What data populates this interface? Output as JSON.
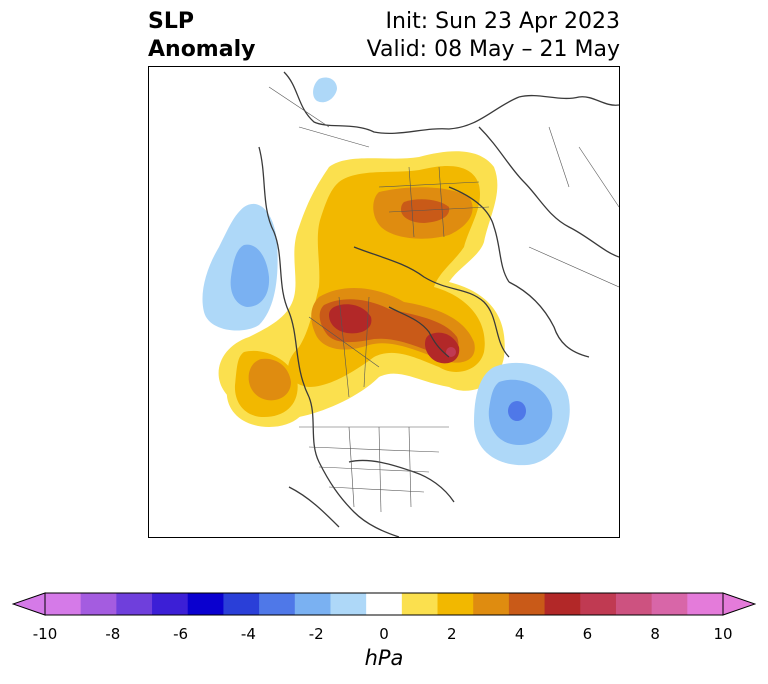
{
  "title": {
    "left_line1": "SLP",
    "left_line2": "Anomaly",
    "right_line1": "Init: Sun 23 Apr 2023",
    "right_line2": "Valid: 08 May – 21 May"
  },
  "colorbar": {
    "unit": "hPa",
    "levels": [
      -10,
      -9,
      -8,
      -7,
      -6,
      -5,
      -4,
      -3,
      -2,
      -1,
      1,
      2,
      3,
      4,
      5,
      6,
      7,
      8,
      9,
      10
    ],
    "tick_labels": [
      "-10",
      "-8",
      "-6",
      "-4",
      "-2",
      "0",
      "2",
      "4",
      "6",
      "8",
      "10"
    ],
    "colors": [
      "#d57ae8",
      "#a45ce0",
      "#6f3fdc",
      "#3c1fd6",
      "#0a00cf",
      "#2a3fd8",
      "#4f78e8",
      "#7ab1f2",
      "#aed8f8",
      "#ffffff",
      "#fbe04e",
      "#f2b800",
      "#df8c10",
      "#c95a18",
      "#b22828",
      "#c03a52",
      "#cd5280",
      "#d866a8",
      "#e47bda"
    ],
    "extend_low_color": "#d57ae8",
    "extend_high_color": "#e47bda"
  }
}
